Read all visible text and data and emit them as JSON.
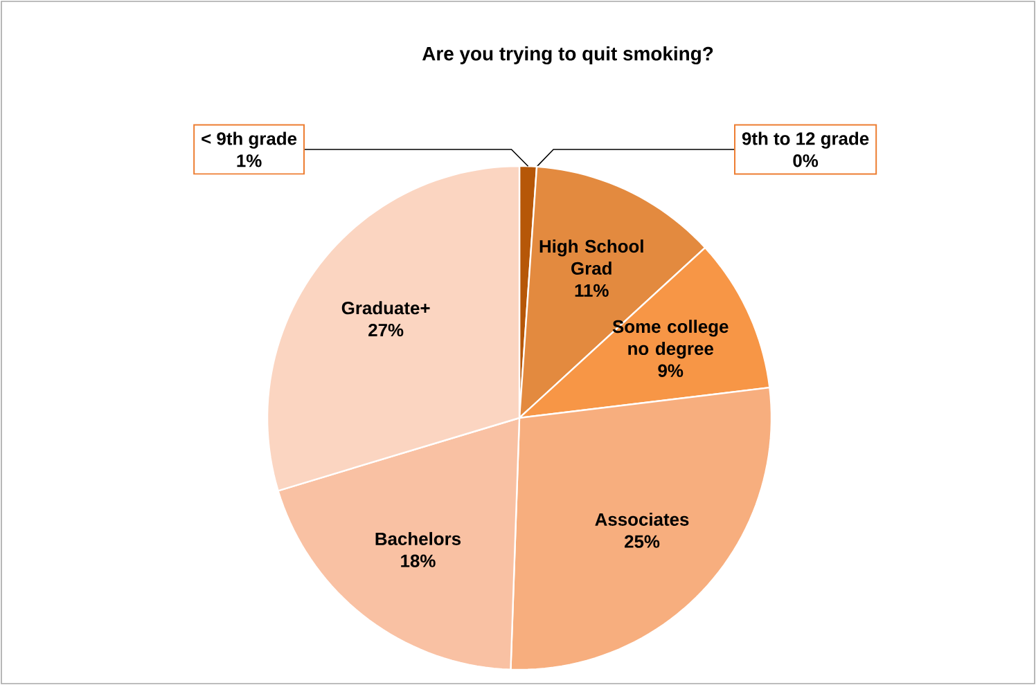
{
  "chart_data": {
    "type": "pie",
    "title": "Are you trying to quit smoking?",
    "categories": [
      "< 9th grade",
      "9th to 12 grade",
      "High School Grad",
      "Some college no degree",
      "Associates",
      "Bachelors",
      "Graduate+"
    ],
    "values": [
      1,
      0,
      11,
      9,
      25,
      18,
      27
    ],
    "value_labels": [
      "1%",
      "0%",
      "11%",
      "9%",
      "25%",
      "18%",
      "27%"
    ],
    "colors": [
      "#b65708",
      "#f38b3a",
      "#e38a3f",
      "#f79646",
      "#f7ae7e",
      "#f9c1a3",
      "#fbd5c1"
    ]
  }
}
